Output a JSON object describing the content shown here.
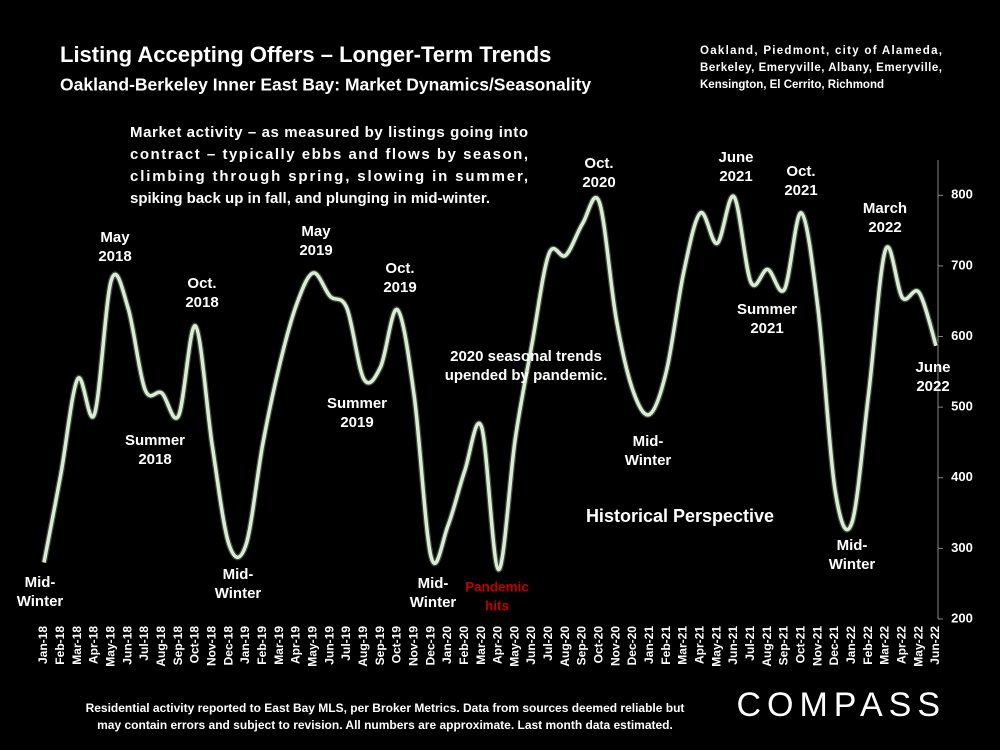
{
  "chart_data": {
    "type": "line",
    "title": "Listing Accepting Offers – Longer-Term Trends",
    "subtitle": "Oakland-Berkeley Inner East Bay: Market Dynamics/Seasonality",
    "note": [
      "Oakland, Piedmont, city of Alameda,",
      "Berkeley, Emeryville, Albany, Emeryville,",
      "Kensington, El Cerrito, Richmond"
    ],
    "description": [
      "Market activity – as measured by listings going into",
      "contract – typically ebbs and flows by season,",
      "climbing through spring, slowing in summer,",
      "spiking back up in fall, and plunging in mid-winter."
    ],
    "categories": [
      "Jan-18",
      "Feb-18",
      "Mar-18",
      "Apr-18",
      "May-18",
      "Jun-18",
      "Jul-18",
      "Aug-18",
      "Sep-18",
      "Oct-18",
      "Nov-18",
      "Dec-18",
      "Jan-19",
      "Feb-19",
      "Mar-19",
      "Apr-19",
      "May-19",
      "Jun-19",
      "Jul-19",
      "Aug-19",
      "Sep-19",
      "Oct-19",
      "Nov-19",
      "Dec-19",
      "Jan-20",
      "Feb-20",
      "Mar-20",
      "Apr-20",
      "May-20",
      "Jun-20",
      "Jul-20",
      "Aug-20",
      "Sep-20",
      "Oct-20",
      "Nov-20",
      "Dec-20",
      "Jan-21",
      "Feb-21",
      "Mar-21",
      "Apr-21",
      "May-21",
      "Jun-21",
      "Jul-21",
      "Aug-21",
      "Sep-21",
      "Oct-21",
      "Nov-21",
      "Dec-21",
      "Jan-22",
      "Feb-22",
      "Mar-22",
      "Apr-22",
      "May-22",
      "Jun-22"
    ],
    "values": [
      280,
      405,
      540,
      490,
      680,
      640,
      525,
      520,
      488,
      615,
      445,
      305,
      305,
      448,
      560,
      645,
      690,
      657,
      640,
      540,
      557,
      638,
      515,
      288,
      332,
      410,
      472,
      270,
      455,
      590,
      717,
      715,
      760,
      790,
      625,
      523,
      490,
      553,
      690,
      775,
      732,
      798,
      677,
      695,
      667,
      775,
      637,
      383,
      336,
      520,
      723,
      655,
      662,
      587
    ],
    "color": "#dcebd5",
    "ylim": [
      200,
      850
    ],
    "yticks": [
      200,
      300,
      400,
      500,
      600,
      700,
      800
    ],
    "annotations": [
      {
        "lines": [
          "Mid-",
          "Winter"
        ]
      },
      {
        "lines": [
          "May",
          "2018"
        ]
      },
      {
        "lines": [
          "Oct.",
          "2018"
        ]
      },
      {
        "lines": [
          "Summer",
          "2018"
        ]
      },
      {
        "lines": [
          "Mid-",
          "Winter"
        ]
      },
      {
        "lines": [
          "May",
          "2019"
        ]
      },
      {
        "lines": [
          "Oct.",
          "2019"
        ]
      },
      {
        "lines": [
          "Summer",
          "2019"
        ]
      },
      {
        "lines": [
          "Mid-",
          "Winter"
        ]
      },
      {
        "lines": [
          "Pandemic",
          "hits"
        ],
        "color": "#c00000"
      },
      {
        "lines": [
          "2020 seasonal trends",
          "upended by pandemic."
        ]
      },
      {
        "lines": [
          "Oct.",
          "2020"
        ]
      },
      {
        "lines": [
          "Mid-",
          "Winter"
        ]
      },
      {
        "lines": [
          "June",
          "2021"
        ]
      },
      {
        "lines": [
          "Oct.",
          "2021"
        ]
      },
      {
        "lines": [
          "Summer",
          "2021"
        ]
      },
      {
        "lines": [
          "March",
          "2022"
        ]
      },
      {
        "lines": [
          "Mid-",
          "Winter"
        ]
      },
      {
        "lines": [
          "June",
          "2022"
        ]
      },
      {
        "lines": [
          "Historical Perspective"
        ]
      }
    ]
  },
  "footer": [
    "Residential activity reported to East Bay MLS, per Broker Metrics. Data from sources deemed reliable but",
    "may contain errors and subject to revision. All numbers are approximate. Last month data estimated."
  ],
  "logo": "COMPASS"
}
